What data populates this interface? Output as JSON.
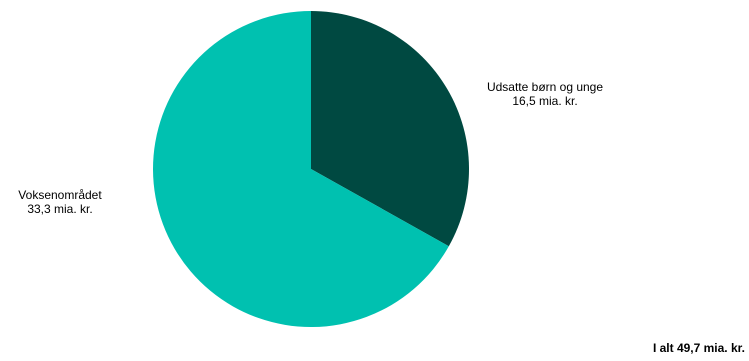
{
  "chart_data": {
    "type": "pie",
    "slices": [
      {
        "label": "Udsatte børn og unge",
        "value": 16.5,
        "value_label": "16,5 mia. kr.",
        "color": "#004941"
      },
      {
        "label": "Voksenområdet",
        "value": 33.3,
        "value_label": "33,3 mia. kr.",
        "color": "#00c1b0"
      }
    ],
    "start": "12 o'clock",
    "direction": "clockwise",
    "legend": "none",
    "total_label": "I alt 49,7 mia. kr."
  }
}
